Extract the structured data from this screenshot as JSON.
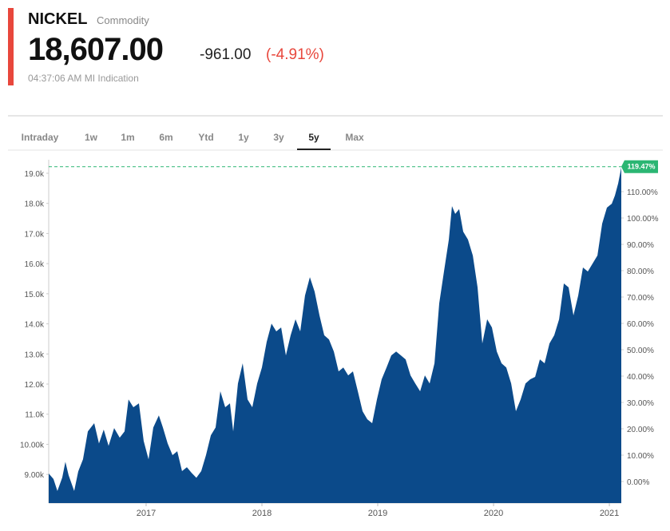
{
  "header": {
    "title": "NICKEL",
    "subtitle": "Commodity",
    "price": "18,607.00",
    "change": "-961.00",
    "change_percent": "(-4.91%)",
    "timestamp": "04:37:06 AM MI Indication"
  },
  "tabs": {
    "items": [
      "Intraday",
      "1w",
      "1m",
      "6m",
      "Ytd",
      "1y",
      "3y",
      "5y",
      "Max"
    ],
    "active": 7
  },
  "chart_data": {
    "type": "area",
    "color": "#0b4a8a",
    "x": [
      2016.159,
      2016.2,
      2016.234,
      2016.276,
      2016.303,
      2016.331,
      2016.379,
      2016.414,
      2016.455,
      2016.497,
      2016.552,
      2016.593,
      2016.634,
      2016.676,
      2016.724,
      2016.772,
      2016.814,
      2016.848,
      2016.89,
      2016.938,
      2016.979,
      2017.021,
      2017.062,
      2017.11,
      2017.145,
      2017.186,
      2017.228,
      2017.269,
      2017.31,
      2017.352,
      2017.393,
      2017.434,
      2017.476,
      2017.517,
      2017.559,
      2017.6,
      2017.641,
      2017.683,
      2017.724,
      2017.752,
      2017.793,
      2017.834,
      2017.876,
      2017.917,
      2017.959,
      2018.0,
      2018.041,
      2018.083,
      2018.124,
      2018.166,
      2018.207,
      2018.248,
      2018.29,
      2018.331,
      2018.372,
      2018.414,
      2018.455,
      2018.497,
      2018.538,
      2018.579,
      2018.621,
      2018.662,
      2018.703,
      2018.745,
      2018.786,
      2018.828,
      2018.869,
      2018.91,
      2018.952,
      2018.993,
      2019.034,
      2019.076,
      2019.117,
      2019.159,
      2019.2,
      2019.241,
      2019.283,
      2019.324,
      2019.366,
      2019.407,
      2019.448,
      2019.49,
      2019.531,
      2019.572,
      2019.614,
      2019.641,
      2019.669,
      2019.703,
      2019.738,
      2019.779,
      2019.821,
      2019.862,
      2019.903,
      2019.945,
      2019.986,
      2020.028,
      2020.069,
      2020.11,
      2020.152,
      2020.193,
      2020.234,
      2020.276,
      2020.317,
      2020.359,
      2020.4,
      2020.441,
      2020.483,
      2020.524,
      2020.566,
      2020.607,
      2020.648,
      2020.69,
      2020.731,
      2020.772,
      2020.814,
      2020.855,
      2020.897,
      2020.938,
      2020.979,
      2021.021,
      2021.048,
      2021.076,
      2021.103
    ],
    "series": [
      {
        "name": "Nickel",
        "values": [
          9030,
          8850,
          8450,
          8900,
          9420,
          8970,
          8450,
          9100,
          9500,
          10430,
          10700,
          10030,
          10490,
          9950,
          10540,
          10220,
          10430,
          11490,
          11230,
          11360,
          10110,
          9500,
          10560,
          10960,
          10560,
          10030,
          9640,
          9770,
          9110,
          9240,
          9050,
          8890,
          9110,
          9640,
          10300,
          10560,
          11760,
          11230,
          11360,
          10430,
          12020,
          12690,
          11490,
          11230,
          12020,
          12550,
          13400,
          14010,
          13750,
          13880,
          12950,
          13620,
          14150,
          13750,
          14940,
          15550,
          15070,
          14280,
          13620,
          13480,
          13080,
          12420,
          12550,
          12290,
          12420,
          11760,
          11100,
          10830,
          10700,
          11490,
          12160,
          12550,
          12950,
          13080,
          12950,
          12820,
          12290,
          12020,
          11760,
          12290,
          12020,
          12690,
          14680,
          15740,
          16800,
          17910,
          17650,
          17810,
          17060,
          16800,
          16270,
          15210,
          13350,
          14150,
          13880,
          13080,
          12690,
          12550,
          12020,
          11100,
          11490,
          12020,
          12160,
          12240,
          12820,
          12690,
          13350,
          13620,
          14150,
          15340,
          15210,
          14280,
          14940,
          15870,
          15740,
          16000,
          16270,
          17330,
          17860,
          17990,
          18260,
          18660,
          19190
        ]
      }
    ],
    "xlim": [
      2016.159,
      2021.103
    ],
    "xticks": [
      2017,
      2018,
      2019,
      2020,
      2021
    ],
    "ylim": [
      8050,
      19450
    ],
    "yticks": [
      {
        "value": 9000,
        "label": "9.00k"
      },
      {
        "value": 10000,
        "label": "10.00k"
      },
      {
        "value": 11000,
        "label": "11.0k"
      },
      {
        "value": 12000,
        "label": "12.0k"
      },
      {
        "value": 13000,
        "label": "13.0k"
      },
      {
        "value": 14000,
        "label": "14.0k"
      },
      {
        "value": 15000,
        "label": "15.0k"
      },
      {
        "value": 16000,
        "label": "16.0k"
      },
      {
        "value": 17000,
        "label": "17.0k"
      },
      {
        "value": 18000,
        "label": "18.0k"
      },
      {
        "value": 19000,
        "label": "19.0k"
      }
    ],
    "y2lim": [
      -8.18,
      122.12
    ],
    "y2ticks": [
      {
        "value": 0,
        "label": "0.00%"
      },
      {
        "value": 10,
        "label": "10.00%"
      },
      {
        "value": 20,
        "label": "20.00%"
      },
      {
        "value": 30,
        "label": "30.00%"
      },
      {
        "value": 40,
        "label": "40.00%"
      },
      {
        "value": 50,
        "label": "50.00%"
      },
      {
        "value": 60,
        "label": "60.00%"
      },
      {
        "value": 70,
        "label": "70.00%"
      },
      {
        "value": 80,
        "label": "80.00%"
      },
      {
        "value": 90,
        "label": "90.00%"
      },
      {
        "value": 100,
        "label": "100.00%"
      },
      {
        "value": 110,
        "label": "110.00%"
      }
    ],
    "marker": {
      "value": 119.47,
      "label": "119.47%",
      "color": "#2bb673"
    }
  }
}
